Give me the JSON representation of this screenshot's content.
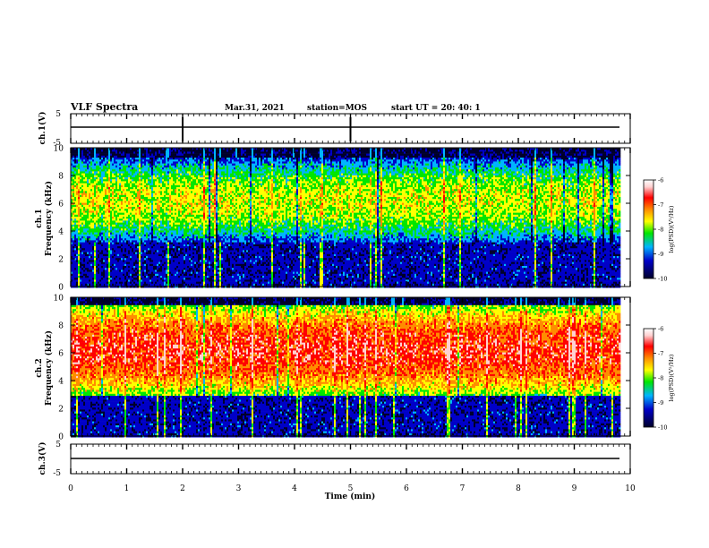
{
  "header": {
    "title": "VLF Spectra",
    "date": "Mar.31, 2021",
    "station": "station=MOS",
    "start": "start  UT  =   20: 40: 1"
  },
  "chart_data": [
    {
      "type": "line",
      "name": "ch.1 waveform",
      "ylabel": "ch.1(V)",
      "ylim": [
        -5,
        5
      ],
      "yticks": [
        "5",
        "-5"
      ],
      "level": 0
    },
    {
      "type": "heatmap",
      "name": "ch.1 spectrogram",
      "ylabel_top": "ch.1",
      "ylabel": "Frequency (kHz)",
      "ylim": [
        0,
        10
      ],
      "yticks": [
        "0",
        "2",
        "4",
        "6",
        "8",
        "10"
      ],
      "xlim": [
        0,
        10
      ],
      "band_khz": [
        3.2,
        9.3
      ],
      "color_scale": {
        "label": "log(PSD)(V²/Hz)",
        "min": -10,
        "max": -6,
        "ticks": [
          "-6",
          "-7",
          "-8",
          "-9",
          "-10"
        ]
      }
    },
    {
      "type": "heatmap",
      "name": "ch.2 spectrogram",
      "ylabel_top": "ch.2",
      "ylabel": "Frequency (kHz)",
      "ylim": [
        0,
        10
      ],
      "yticks": [
        "0",
        "2",
        "4",
        "6",
        "8",
        "10"
      ],
      "xlim": [
        0,
        10
      ],
      "band_khz": [
        3.0,
        9.5
      ],
      "color_scale": {
        "label": "log(PSD)(V²/Hz)",
        "min": -10,
        "max": -6,
        "ticks": [
          "-6",
          "-7",
          "-8",
          "-9",
          "-10"
        ]
      }
    },
    {
      "type": "line",
      "name": "ch.3 waveform",
      "ylabel": "ch.3(V)",
      "ylim": [
        -5,
        5
      ],
      "yticks": [
        "5",
        "-5"
      ],
      "level": 0
    }
  ],
  "xaxis": {
    "label": "Time (min)",
    "ticks": [
      "0",
      "1",
      "2",
      "3",
      "4",
      "5",
      "6",
      "7",
      "8",
      "9",
      "10"
    ],
    "range": [
      0,
      10
    ],
    "data_end": 9.82
  },
  "colormap": [
    "#00002a",
    "#0000c8",
    "#00b4ff",
    "#00e600",
    "#ffff00",
    "#ff8c00",
    "#ff0000",
    "#ffd0d0",
    "#ffffff"
  ]
}
